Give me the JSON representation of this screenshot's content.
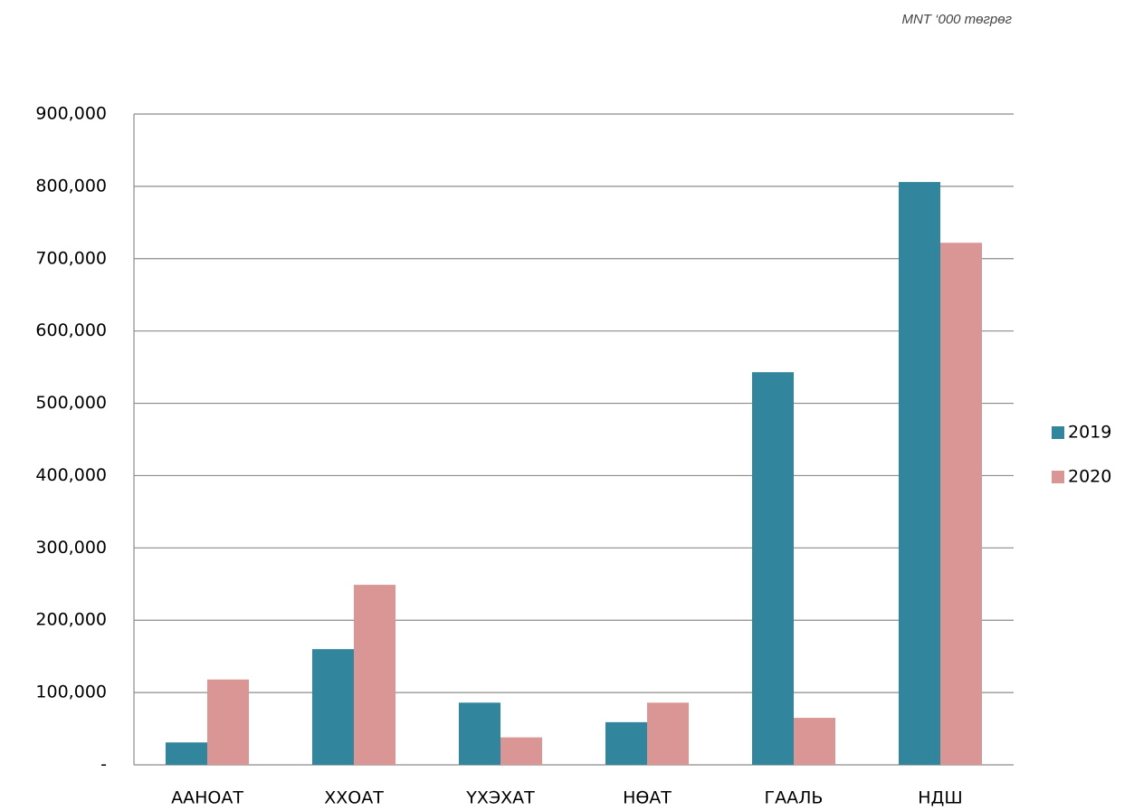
{
  "chart_data": {
    "type": "bar",
    "subtitle": "MNT ‘000 төгрөг",
    "categories": [
      "ААНОАТ",
      "ХХОАТ",
      "ҮХЭХАТ",
      "НӨАТ",
      "ГААЛЬ",
      "НДШ"
    ],
    "series": [
      {
        "name": "2019",
        "color": "#31859c",
        "values": [
          31000,
          160000,
          86000,
          59000,
          543000,
          806000
        ]
      },
      {
        "name": "2020",
        "color": "#d99694",
        "values": [
          118000,
          249000,
          38000,
          86000,
          65000,
          722000
        ]
      }
    ],
    "ylim": [
      0,
      900000
    ],
    "yticks": [
      {
        "value": 0,
        "label": "-"
      },
      {
        "value": 100000,
        "label": "100,000"
      },
      {
        "value": 200000,
        "label": "200,000"
      },
      {
        "value": 300000,
        "label": "300,000"
      },
      {
        "value": 400000,
        "label": "400,000"
      },
      {
        "value": 500000,
        "label": "500,000"
      },
      {
        "value": 600000,
        "label": "600,000"
      },
      {
        "value": 700000,
        "label": "700,000"
      },
      {
        "value": 800000,
        "label": "800,000"
      },
      {
        "value": 900000,
        "label": "900,000"
      }
    ],
    "grid": true,
    "legend": "right"
  }
}
